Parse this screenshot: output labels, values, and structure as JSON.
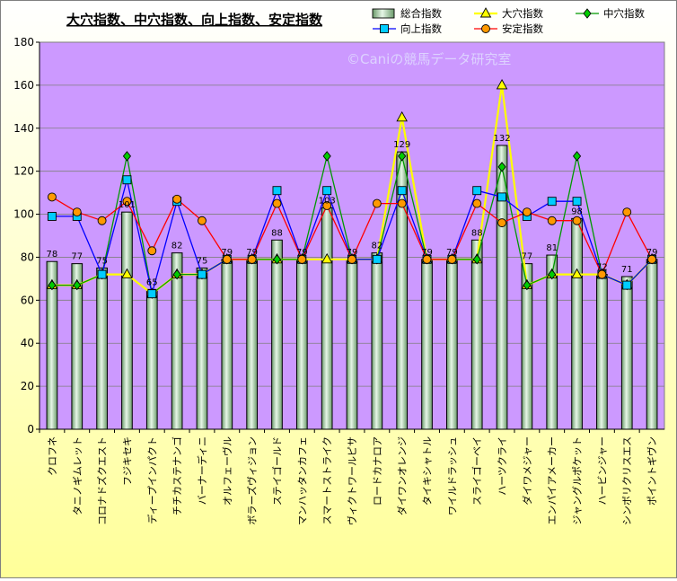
{
  "chart_data": {
    "type": "bar",
    "title": "大穴指数、中穴指数、向上指数、安定指数",
    "watermark": "©Caniの競馬データ研究室",
    "xlabel": "",
    "ylabel": "",
    "ylim": [
      0,
      180
    ],
    "yticks": [
      "0",
      "20",
      "40",
      "60",
      "80",
      "100",
      "120",
      "140",
      "160",
      "180"
    ],
    "grid": true,
    "legend_position": "top-right",
    "categories": [
      "クロフネ",
      "タニノギムレット",
      "コロナドズクエスト",
      "フジキセキ",
      "ディープインパクト",
      "チチカステナンゴ",
      "バーナーディニ",
      "オルフェーヴル",
      "ボラーズヴィジョン",
      "ステイゴールド",
      "マンハッタンカフェ",
      "スマートストライク",
      "ヴィクトワールピサ",
      "ロードカナロア",
      "ダイワンオレンジ",
      "タイキシャトル",
      "ワイルドラッシュ",
      "スライゴーベイ",
      "ハーツクライ",
      "ダイワメジャー",
      "エンパイアメーカー",
      "ジャングルポケット",
      "ハービンジャー",
      "シンボリクリスエス",
      "ポイントギヴン"
    ],
    "series": [
      {
        "name": "総合指数",
        "type": "bar",
        "color": "#b4dcb4",
        "labels": true,
        "values": [
          78,
          77,
          75,
          101,
          65,
          82,
          75,
          79,
          79,
          88,
          79,
          103,
          79,
          82,
          129,
          79,
          79,
          88,
          132,
          77,
          81,
          98,
          72,
          71,
          79
        ]
      },
      {
        "name": "大穴指数",
        "type": "line",
        "color": "#ffff00",
        "marker": "triangle",
        "values": [
          67,
          67,
          72,
          72,
          63,
          72,
          72,
          79,
          79,
          79,
          79,
          79,
          79,
          79,
          145,
          79,
          79,
          79,
          160,
          67,
          72,
          72,
          72,
          67,
          79
        ]
      },
      {
        "name": "中穴指数",
        "type": "line",
        "color": "#009900",
        "marker": "diamond",
        "values": [
          67,
          67,
          72,
          127,
          63,
          72,
          72,
          79,
          79,
          79,
          79,
          127,
          79,
          79,
          127,
          79,
          79,
          79,
          122,
          67,
          72,
          127,
          72,
          67,
          79
        ]
      },
      {
        "name": "向上指数",
        "type": "line",
        "color": "#0000ff",
        "marker": "square",
        "values": [
          99,
          99,
          72,
          116,
          63,
          106,
          72,
          79,
          79,
          111,
          79,
          111,
          79,
          79,
          111,
          79,
          79,
          111,
          108,
          99,
          106,
          106,
          72,
          67,
          79
        ]
      },
      {
        "name": "安定指数",
        "type": "line",
        "color": "#ff0000",
        "marker": "circle",
        "values": [
          108,
          101,
          97,
          106,
          83,
          107,
          97,
          79,
          79,
          105,
          79,
          104,
          79,
          105,
          105,
          79,
          79,
          105,
          96,
          101,
          97,
          97,
          72,
          101,
          79
        ]
      }
    ],
    "colors": {
      "plot_bg": "#cc99ff",
      "page_bg_top": "#ffffff",
      "page_bg_bottom": "#ffff99",
      "bar_fill": "#b4dcb4",
      "watermark": "#ddd2ff",
      "marker_big": "#ffff00",
      "marker_mid": "#00cc00",
      "marker_up": "#00ccff",
      "marker_stable": "#ff9900"
    }
  }
}
